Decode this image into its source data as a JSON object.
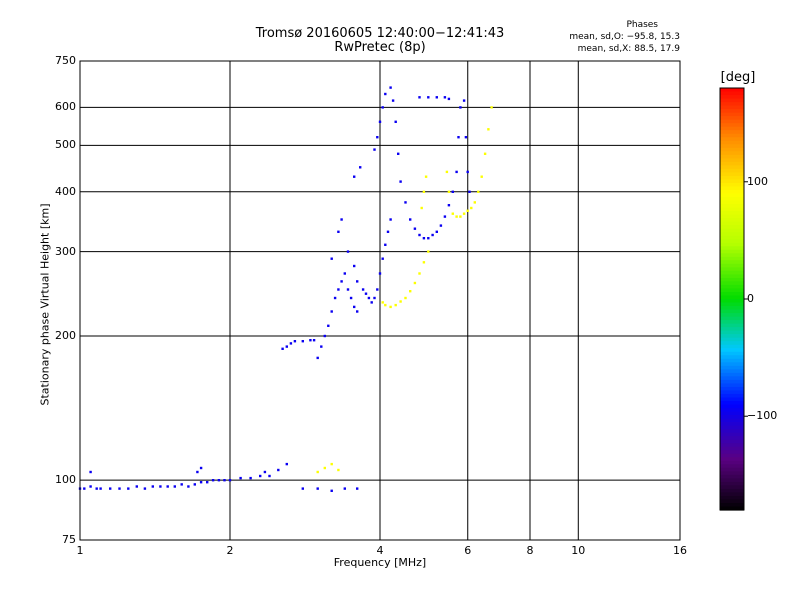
{
  "header": {
    "title_line1": "Tromsø 20160605 12:40:00−12:41:43",
    "title_line2": "RwPretec (8p)",
    "stats_title": "Phases",
    "stats_o": "mean, sd,O: −95.8, 15.3",
    "stats_x": "mean, sd,X: 88.5, 17.9"
  },
  "chart_data": {
    "type": "scatter",
    "title": "Tromsø 20160605 12:40:00−12:41:43",
    "subtitle": "RwPretec (8p)",
    "xlabel": "Frequency [MHz]",
    "ylabel": "Stationary phase Virtual Height [km]",
    "xscale": "log",
    "yscale": "log",
    "xlim": [
      1,
      16
    ],
    "ylim": [
      75,
      750
    ],
    "xticks": [
      1,
      2,
      4,
      6,
      8,
      10,
      16
    ],
    "xtick_labels": [
      "1",
      "2",
      "4",
      "6",
      "8",
      "10",
      "16"
    ],
    "yticks": [
      75,
      100,
      200,
      300,
      400,
      500,
      600,
      750
    ],
    "ytick_labels": [
      "75",
      "100",
      "200",
      "300",
      "400",
      "500",
      "600",
      "750"
    ],
    "grid": true,
    "colorbar": {
      "label": "[deg]",
      "range": [
        -180,
        180
      ],
      "ticks": [
        100,
        0,
        -100
      ],
      "tick_labels": [
        "100",
        "0",
        "−100"
      ]
    },
    "series": [
      {
        "mode": "O",
        "color_hint": "blue (phase ≈ −95°)",
        "points": [
          [
            1.0,
            96
          ],
          [
            1.02,
            96
          ],
          [
            1.05,
            97
          ],
          [
            1.05,
            104
          ],
          [
            1.08,
            96
          ],
          [
            1.1,
            96
          ],
          [
            1.15,
            96
          ],
          [
            1.2,
            96
          ],
          [
            1.25,
            96
          ],
          [
            1.3,
            97
          ],
          [
            1.35,
            96
          ],
          [
            1.4,
            97
          ],
          [
            1.45,
            97
          ],
          [
            1.5,
            97
          ],
          [
            1.55,
            97
          ],
          [
            1.6,
            98
          ],
          [
            1.65,
            97
          ],
          [
            1.7,
            98
          ],
          [
            1.75,
            99
          ],
          [
            1.8,
            99
          ],
          [
            1.85,
            100
          ],
          [
            1.9,
            100
          ],
          [
            1.95,
            100
          ],
          [
            2.0,
            100
          ],
          [
            2.1,
            101
          ],
          [
            2.2,
            101
          ],
          [
            2.3,
            102
          ],
          [
            2.4,
            102
          ],
          [
            2.5,
            105
          ],
          [
            2.6,
            108
          ],
          [
            1.72,
            104
          ],
          [
            1.75,
            106
          ],
          [
            2.35,
            104
          ],
          [
            2.55,
            188
          ],
          [
            2.6,
            190
          ],
          [
            2.65,
            193
          ],
          [
            2.7,
            195
          ],
          [
            2.8,
            195
          ],
          [
            2.9,
            196
          ],
          [
            2.95,
            196
          ],
          [
            2.8,
            96
          ],
          [
            3.0,
            96
          ],
          [
            3.2,
            95
          ],
          [
            3.4,
            96
          ],
          [
            3.6,
            96
          ],
          [
            3.0,
            180
          ],
          [
            3.05,
            190
          ],
          [
            3.1,
            200
          ],
          [
            3.15,
            210
          ],
          [
            3.2,
            225
          ],
          [
            3.25,
            240
          ],
          [
            3.3,
            250
          ],
          [
            3.35,
            260
          ],
          [
            3.4,
            270
          ],
          [
            3.45,
            250
          ],
          [
            3.5,
            240
          ],
          [
            3.55,
            230
          ],
          [
            3.6,
            225
          ],
          [
            3.2,
            290
          ],
          [
            3.3,
            330
          ],
          [
            3.35,
            350
          ],
          [
            3.45,
            300
          ],
          [
            3.55,
            280
          ],
          [
            3.6,
            260
          ],
          [
            3.7,
            250
          ],
          [
            3.75,
            245
          ],
          [
            3.8,
            240
          ],
          [
            3.85,
            235
          ],
          [
            3.9,
            240
          ],
          [
            3.95,
            250
          ],
          [
            4.0,
            270
          ],
          [
            4.05,
            290
          ],
          [
            4.1,
            310
          ],
          [
            4.15,
            330
          ],
          [
            4.2,
            350
          ],
          [
            3.55,
            430
          ],
          [
            3.65,
            450
          ],
          [
            3.9,
            490
          ],
          [
            3.95,
            520
          ],
          [
            4.0,
            560
          ],
          [
            4.05,
            600
          ],
          [
            4.1,
            640
          ],
          [
            4.2,
            660
          ],
          [
            4.25,
            620
          ],
          [
            4.3,
            560
          ],
          [
            4.35,
            480
          ],
          [
            4.4,
            420
          ],
          [
            4.5,
            380
          ],
          [
            4.6,
            350
          ],
          [
            4.7,
            335
          ],
          [
            4.8,
            325
          ],
          [
            4.9,
            320
          ],
          [
            5.0,
            320
          ],
          [
            5.1,
            325
          ],
          [
            5.2,
            330
          ],
          [
            5.3,
            340
          ],
          [
            5.4,
            355
          ],
          [
            5.5,
            375
          ],
          [
            5.6,
            400
          ],
          [
            5.7,
            440
          ],
          [
            5.75,
            520
          ],
          [
            5.8,
            600
          ],
          [
            4.8,
            630
          ],
          [
            5.0,
            630
          ],
          [
            5.2,
            630
          ],
          [
            5.4,
            630
          ],
          [
            5.5,
            625
          ],
          [
            5.9,
            620
          ],
          [
            5.95,
            520
          ],
          [
            6.0,
            440
          ],
          [
            6.05,
            400
          ]
        ]
      },
      {
        "mode": "X",
        "color_hint": "yellow (phase ≈ +88°)",
        "points": [
          [
            3.0,
            104
          ],
          [
            3.1,
            106
          ],
          [
            3.2,
            108
          ],
          [
            3.3,
            105
          ],
          [
            4.05,
            235
          ],
          [
            4.1,
            232
          ],
          [
            4.2,
            230
          ],
          [
            4.3,
            232
          ],
          [
            4.4,
            236
          ],
          [
            4.5,
            240
          ],
          [
            4.6,
            248
          ],
          [
            4.7,
            258
          ],
          [
            4.8,
            270
          ],
          [
            4.9,
            285
          ],
          [
            5.0,
            300
          ],
          [
            4.85,
            370
          ],
          [
            4.9,
            400
          ],
          [
            4.95,
            430
          ],
          [
            5.6,
            360
          ],
          [
            5.7,
            355
          ],
          [
            5.8,
            355
          ],
          [
            5.9,
            360
          ],
          [
            6.0,
            365
          ],
          [
            6.1,
            370
          ],
          [
            6.2,
            380
          ],
          [
            6.3,
            400
          ],
          [
            6.4,
            430
          ],
          [
            6.5,
            480
          ],
          [
            6.6,
            540
          ],
          [
            6.7,
            600
          ],
          [
            5.5,
            400
          ],
          [
            5.45,
            440
          ]
        ]
      }
    ]
  }
}
